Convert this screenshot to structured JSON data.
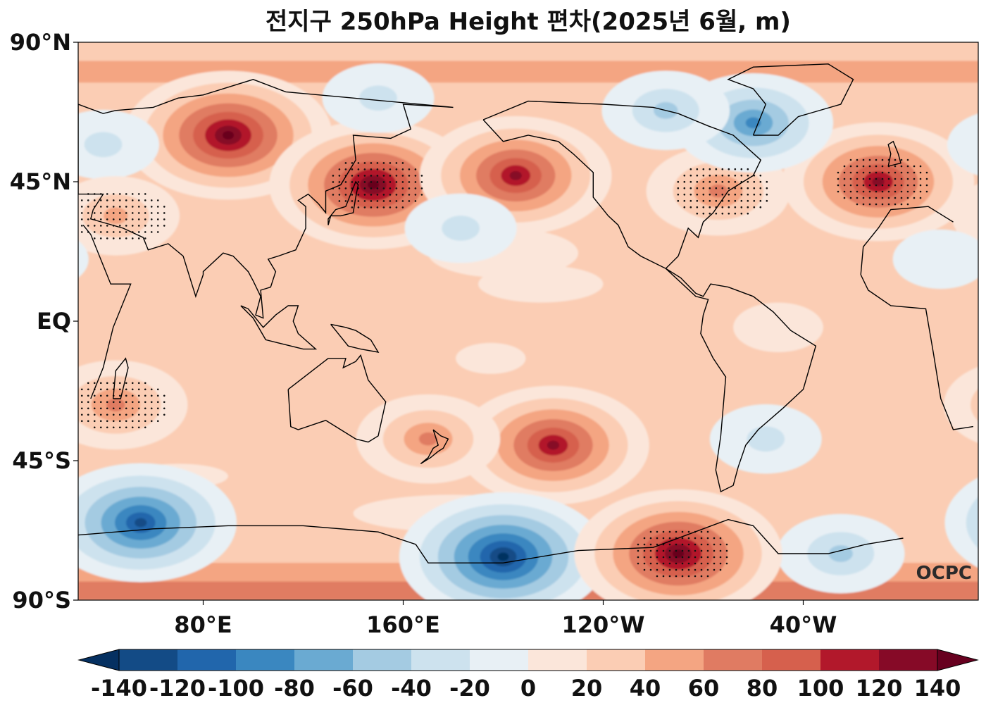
{
  "chart_data": {
    "type": "heatmap",
    "title": "전지구 250hPa Height 편차(2025년 6월, m)",
    "projection": "Plate Carree, centered on the Pacific",
    "xticks": [
      "80°E",
      "160°E",
      "120°W",
      "40°W"
    ],
    "yticks": [
      "90°N",
      "45°N",
      "EQ",
      "45°S",
      "90°S"
    ],
    "colorbar": {
      "levels": [
        -140,
        -120,
        -100,
        -80,
        -60,
        -40,
        -20,
        0,
        20,
        40,
        60,
        80,
        100,
        120,
        140
      ],
      "tick_labels": [
        "-140",
        "-120",
        "-100",
        "-80",
        "-60",
        "-40",
        "-20",
        "0",
        "20",
        "40",
        "60",
        "80",
        "100",
        "120",
        "140"
      ],
      "colors": [
        "#053061",
        "#134b86",
        "#2166ac",
        "#3a87c0",
        "#6aaad2",
        "#a4cbe2",
        "#cde2ee",
        "#e8f0f5",
        "#fbe6da",
        "#fbcdb4",
        "#f4a582",
        "#e07b62",
        "#d6604d",
        "#b2182b",
        "#860a27",
        "#67001f"
      ],
      "extend": "both"
    },
    "background_anomaly_m": 30,
    "anomaly_centers": [
      {
        "lon": 90,
        "lat": 60,
        "value": 150,
        "significant": false
      },
      {
        "lon": 148,
        "lat": 44,
        "value": 150,
        "significant": true
      },
      {
        "lon": 205,
        "lat": 47,
        "value": 130,
        "significant": false
      },
      {
        "lon": 350,
        "lat": 45,
        "value": 140,
        "significant": true
      },
      {
        "lon": 286,
        "lat": 42,
        "value": 80,
        "significant": true
      },
      {
        "lon": 300,
        "lat": 64,
        "value": -95,
        "significant": false
      },
      {
        "lon": 265,
        "lat": 68,
        "value": -60,
        "significant": false
      },
      {
        "lon": 40,
        "lat": 57,
        "value": -30,
        "significant": false
      },
      {
        "lon": 150,
        "lat": 72,
        "value": -30,
        "significant": false
      },
      {
        "lon": 183,
        "lat": 30,
        "value": -30,
        "significant": false
      },
      {
        "lon": 45,
        "lat": 34,
        "value": 60,
        "significant": true
      },
      {
        "lon": 15,
        "lat": 20,
        "value": -20,
        "significant": false
      },
      {
        "lon": 220,
        "lat": -40,
        "value": 140,
        "significant": false
      },
      {
        "lon": 170,
        "lat": -38,
        "value": 80,
        "significant": false
      },
      {
        "lon": 305,
        "lat": -38,
        "value": -40,
        "significant": false
      },
      {
        "lon": 200,
        "lat": -76,
        "value": -150,
        "significant": false
      },
      {
        "lon": 55,
        "lat": -65,
        "value": -140,
        "significant": false
      },
      {
        "lon": 335,
        "lat": -75,
        "value": -60,
        "significant": false
      },
      {
        "lon": 270,
        "lat": -75,
        "value": 160,
        "significant": true
      },
      {
        "lon": 45,
        "lat": -27,
        "value": 70,
        "significant": true
      }
    ],
    "logo": "OCPC"
  }
}
